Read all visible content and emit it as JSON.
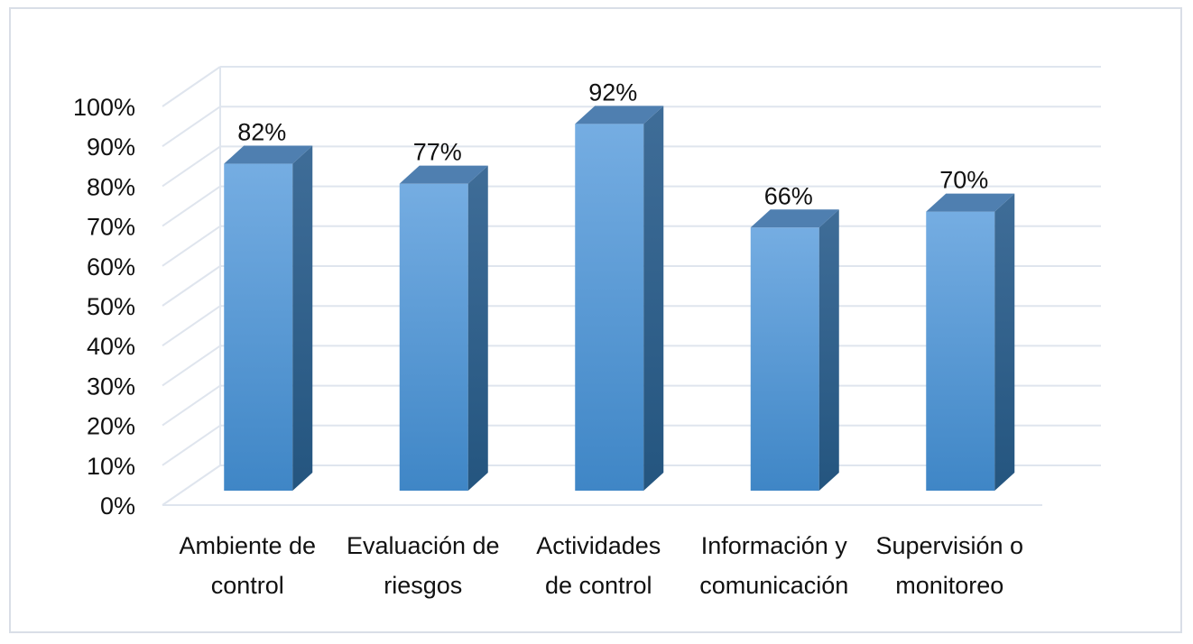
{
  "chart_data": {
    "type": "bar",
    "categories": [
      [
        "Ambiente de",
        "control"
      ],
      [
        "Evaluación de",
        "riesgos"
      ],
      [
        "Actividades",
        "de control"
      ],
      [
        "Información y",
        "comunicación"
      ],
      [
        "Supervisión o",
        "monitoreo"
      ]
    ],
    "values": [
      82,
      77,
      92,
      66,
      70
    ],
    "data_labels": [
      "82%",
      "77%",
      "92%",
      "66%",
      "70%"
    ],
    "yticks": [
      "0%",
      "10%",
      "20%",
      "30%",
      "40%",
      "50%",
      "60%",
      "70%",
      "80%",
      "90%",
      "100%"
    ],
    "ylim": [
      0,
      100
    ],
    "title": "",
    "xlabel": "",
    "ylabel": "",
    "grid": true,
    "legend": "none",
    "style": "3d-column",
    "colors": {
      "bar_front_top": "#75ade2",
      "bar_front_bottom": "#3f86c6",
      "bar_side": "#2a5b86",
      "bar_top": "#4f7fb0",
      "grid": "#dfe5ee",
      "frame": "#d9dee7"
    }
  }
}
